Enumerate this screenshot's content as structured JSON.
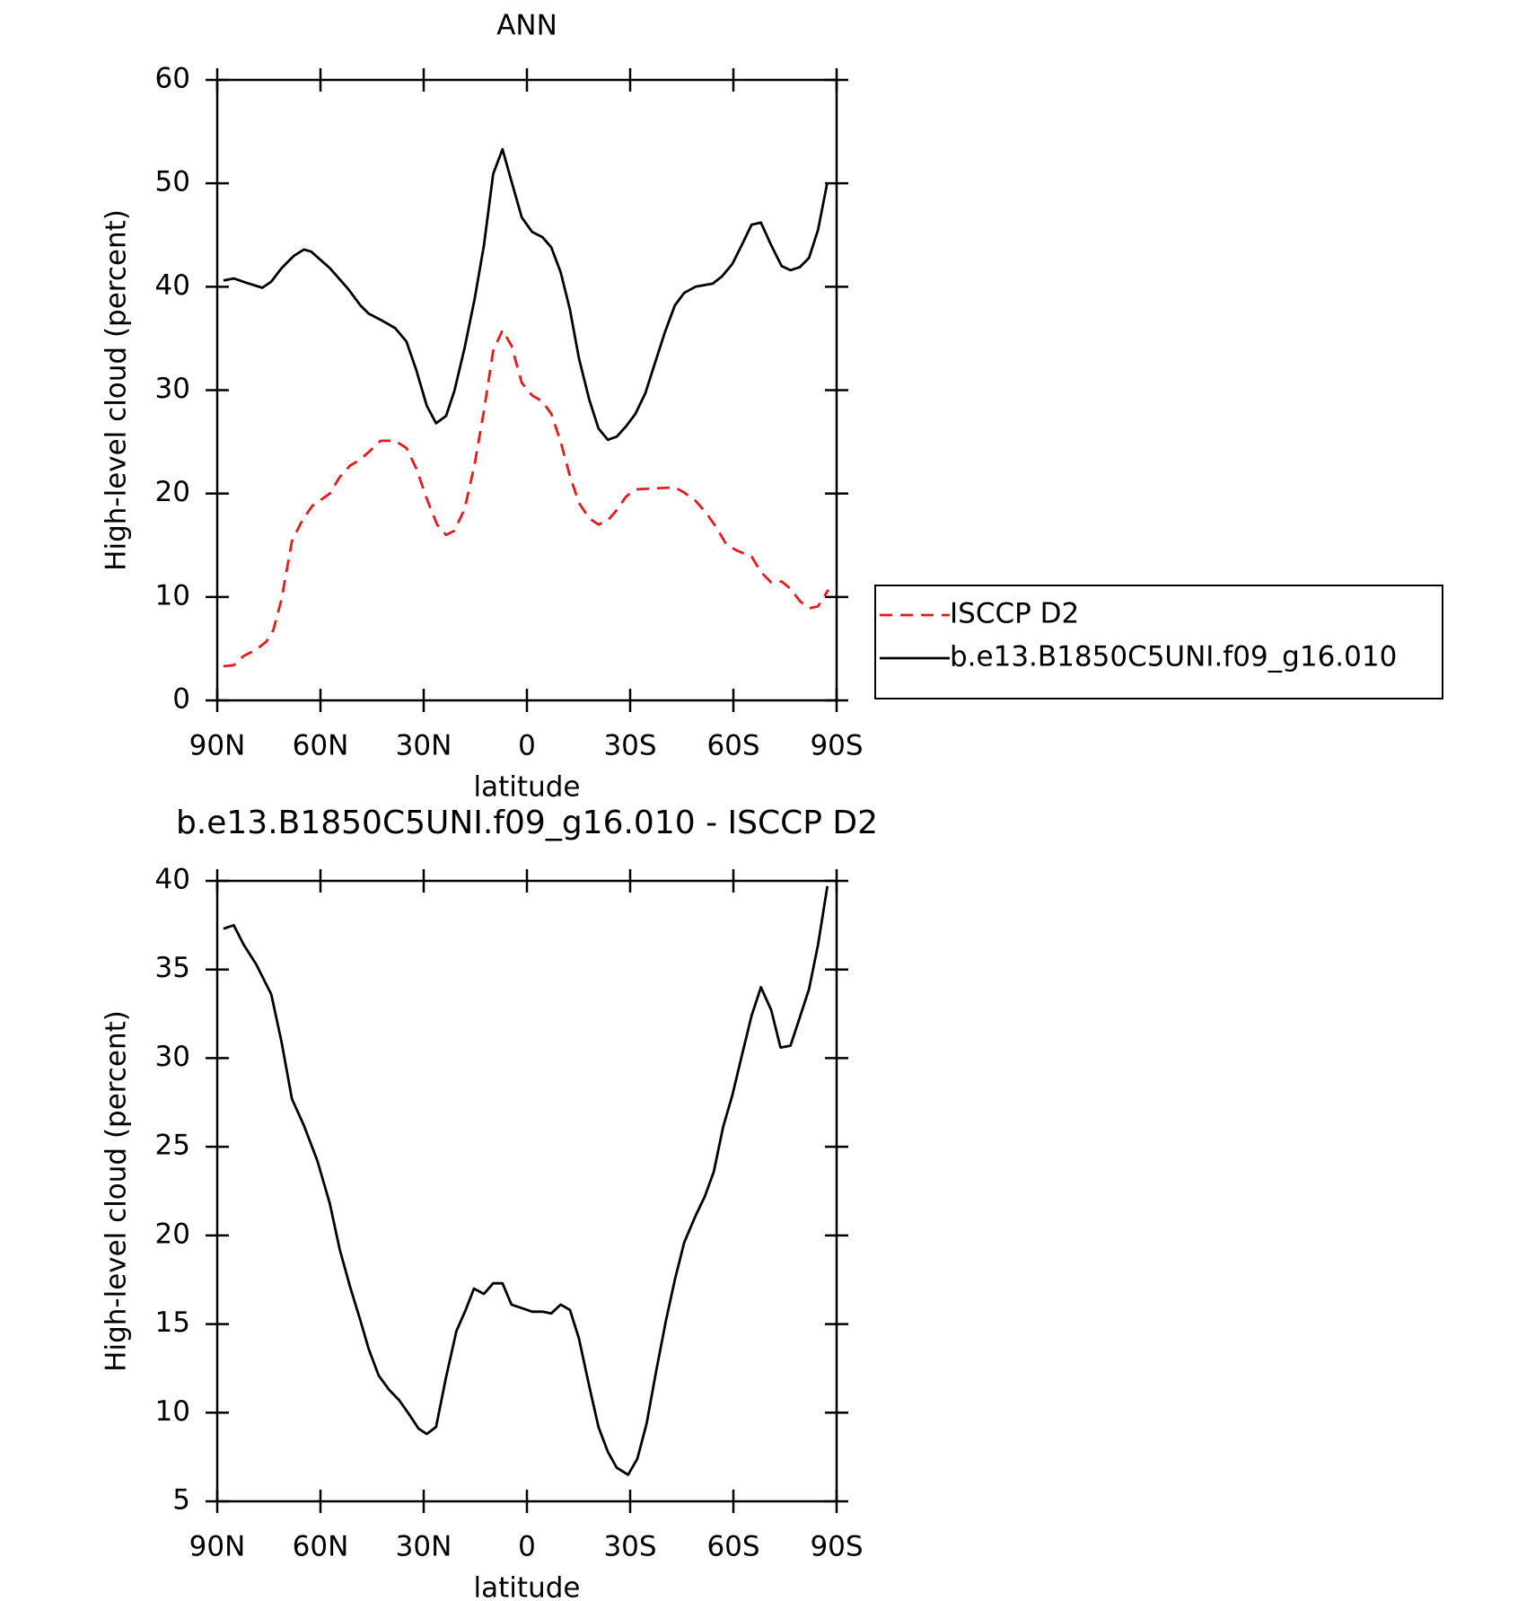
{
  "chart_data": [
    {
      "type": "line",
      "title": "ANN",
      "xlabel": "latitude",
      "ylabel": "High-level cloud (percent)",
      "xlim": [
        90,
        -90
      ],
      "ylim": [
        0,
        60
      ],
      "xticks": [
        {
          "value": 90,
          "label": "90N"
        },
        {
          "value": 60,
          "label": "60N"
        },
        {
          "value": 30,
          "label": "30N"
        },
        0,
        {
          "value": -30,
          "label": "30S"
        },
        {
          "value": -60,
          "label": "60S"
        },
        {
          "value": -90,
          "label": "90S"
        }
      ],
      "yticks": [
        0,
        10,
        20,
        30,
        40,
        50,
        60
      ],
      "legend": "outside-right",
      "series": [
        {
          "name": "ISCCP D2",
          "color": "#e41a1c",
          "dashed": true,
          "x": [
            88.2,
            85.2,
            82.3,
            78.7,
            75.7,
            73.7,
            71.3,
            68.3,
            65.3,
            62.4,
            57.3,
            54.4,
            51.4,
            48.4,
            45.4,
            42.5,
            38.3,
            35,
            32.1,
            29.1,
            26.1,
            23.5,
            21.1,
            18.1,
            15.2,
            12.5,
            9.8,
            7.1,
            4.5,
            1.5,
            -1.5,
            -4.5,
            -7.1,
            -9.8,
            -12.5,
            -15.1,
            -18.1,
            -20.8,
            -23.5,
            -26.1,
            -28.8,
            -31.5,
            -37.1,
            -43,
            -45.7,
            -49,
            -51.9,
            -54.9,
            -57.9,
            -60.9,
            -65.3,
            -68,
            -71,
            -74,
            -76.6,
            -79.3,
            -82,
            -84.6,
            -87.6
          ],
          "values": [
            3.3,
            3.4,
            4.3,
            4.9,
            5.7,
            6.8,
            9.8,
            15.4,
            17.4,
            18.8,
            20.0,
            21.6,
            22.7,
            23.3,
            24.2,
            25.1,
            25.1,
            24.4,
            22.4,
            19.5,
            17.0,
            16.0,
            16.4,
            18.5,
            22.8,
            28.0,
            33.8,
            35.8,
            34.3,
            30.7,
            29.5,
            28.9,
            27.7,
            25.0,
            21.7,
            19.1,
            17.6,
            17.0,
            17.4,
            18.4,
            19.7,
            20.4,
            20.5,
            20.6,
            20.1,
            19.3,
            18.2,
            16.8,
            15.1,
            14.5,
            13.9,
            12.4,
            11.4,
            11.5,
            10.8,
            9.6,
            8.9,
            9.1,
            10.7
          ]
        },
        {
          "name": "b.e13.B1850C5UNI.f09_g16.010",
          "color": "#000000",
          "dashed": false,
          "x": [
            88.2,
            85.2,
            81.7,
            76.9,
            74.3,
            71.3,
            67.7,
            64.8,
            62.7,
            57.3,
            52,
            48.4,
            46,
            42.5,
            38.3,
            35,
            32.1,
            29.1,
            26.4,
            23.5,
            21.1,
            18.1,
            15.2,
            12.5,
            9.8,
            7.1,
            4.5,
            1.5,
            -1.5,
            -4.5,
            -7.1,
            -9.8,
            -12.5,
            -15.1,
            -18.1,
            -20.8,
            -23.5,
            -26.1,
            -28.8,
            -31.5,
            -34.4,
            -37.1,
            -40.1,
            -43,
            -45.7,
            -49,
            -54,
            -56.7,
            -59.7,
            -62.4,
            -65.3,
            -68,
            -71,
            -74,
            -76.6,
            -79.3,
            -82,
            -84.6,
            -87.3
          ],
          "values": [
            40.6,
            40.8,
            40.4,
            39.9,
            40.5,
            41.8,
            43.0,
            43.6,
            43.4,
            41.8,
            39.8,
            38.2,
            37.4,
            36.8,
            36.0,
            34.7,
            31.9,
            28.5,
            26.8,
            27.5,
            29.9,
            34.1,
            38.8,
            44.0,
            50.9,
            53.3,
            50.2,
            46.7,
            45.3,
            44.8,
            43.8,
            41.4,
            37.8,
            33.1,
            29.1,
            26.3,
            25.2,
            25.5,
            26.5,
            27.7,
            29.7,
            32.5,
            35.6,
            38.2,
            39.4,
            40.0,
            40.3,
            41.0,
            42.2,
            44.0,
            46.0,
            46.2,
            44.0,
            42.0,
            41.6,
            41.9,
            42.8,
            45.5,
            50.1
          ]
        }
      ]
    },
    {
      "type": "line",
      "title": "b.e13.B1850C5UNI.f09_g16.010 - ISCCP D2",
      "xlabel": "latitude",
      "ylabel": "High-level cloud (percent)",
      "xlim": [
        90,
        -90
      ],
      "ylim": [
        5,
        40
      ],
      "xticks": [
        {
          "value": 90,
          "label": "90N"
        },
        {
          "value": 60,
          "label": "60N"
        },
        {
          "value": 30,
          "label": "30N"
        },
        0,
        {
          "value": -30,
          "label": "30S"
        },
        {
          "value": -60,
          "label": "60S"
        },
        {
          "value": -90,
          "label": "90S"
        }
      ],
      "yticks": [
        5,
        10,
        15,
        20,
        25,
        30,
        35,
        40
      ],
      "series": [
        {
          "color": "#000000",
          "dashed": false,
          "x": [
            88.2,
            85.2,
            82.3,
            78.7,
            74.3,
            71.3,
            68.3,
            64.8,
            60.9,
            57.3,
            54.4,
            51.4,
            48.4,
            46,
            43.1,
            40.1,
            37.1,
            34.2,
            31.5,
            29.1,
            26.4,
            23.5,
            20.5,
            17.8,
            15.4,
            12.5,
            9.8,
            7.1,
            4.5,
            1.5,
            -1.5,
            -4.5,
            -7.1,
            -9.8,
            -12.5,
            -15.1,
            -18.1,
            -20.8,
            -23.5,
            -26.1,
            -29.4,
            -32.1,
            -34.8,
            -37.5,
            -40.4,
            -43,
            -45.7,
            -49,
            -51.7,
            -54.3,
            -57,
            -59.7,
            -62.4,
            -65.3,
            -68,
            -71,
            -73.7,
            -76.6,
            -79.3,
            -82,
            -84.6,
            -87.3
          ],
          "values": [
            37.3,
            37.5,
            36.4,
            35.3,
            33.6,
            30.9,
            27.7,
            26.2,
            24.2,
            21.8,
            19.2,
            17.1,
            15.2,
            13.6,
            12.1,
            11.3,
            10.7,
            9.9,
            9.1,
            8.8,
            9.2,
            12.0,
            14.6,
            15.8,
            17.0,
            16.7,
            17.3,
            17.3,
            16.1,
            15.9,
            15.7,
            15.7,
            15.6,
            16.1,
            15.8,
            14.2,
            11.5,
            9.2,
            7.8,
            6.9,
            6.5,
            7.4,
            9.4,
            12.3,
            15.2,
            17.5,
            19.6,
            21.1,
            22.2,
            23.6,
            26.1,
            27.9,
            30.1,
            32.4,
            34.0,
            32.7,
            30.6,
            30.7,
            32.3,
            33.9,
            36.4,
            39.7
          ]
        }
      ]
    }
  ]
}
